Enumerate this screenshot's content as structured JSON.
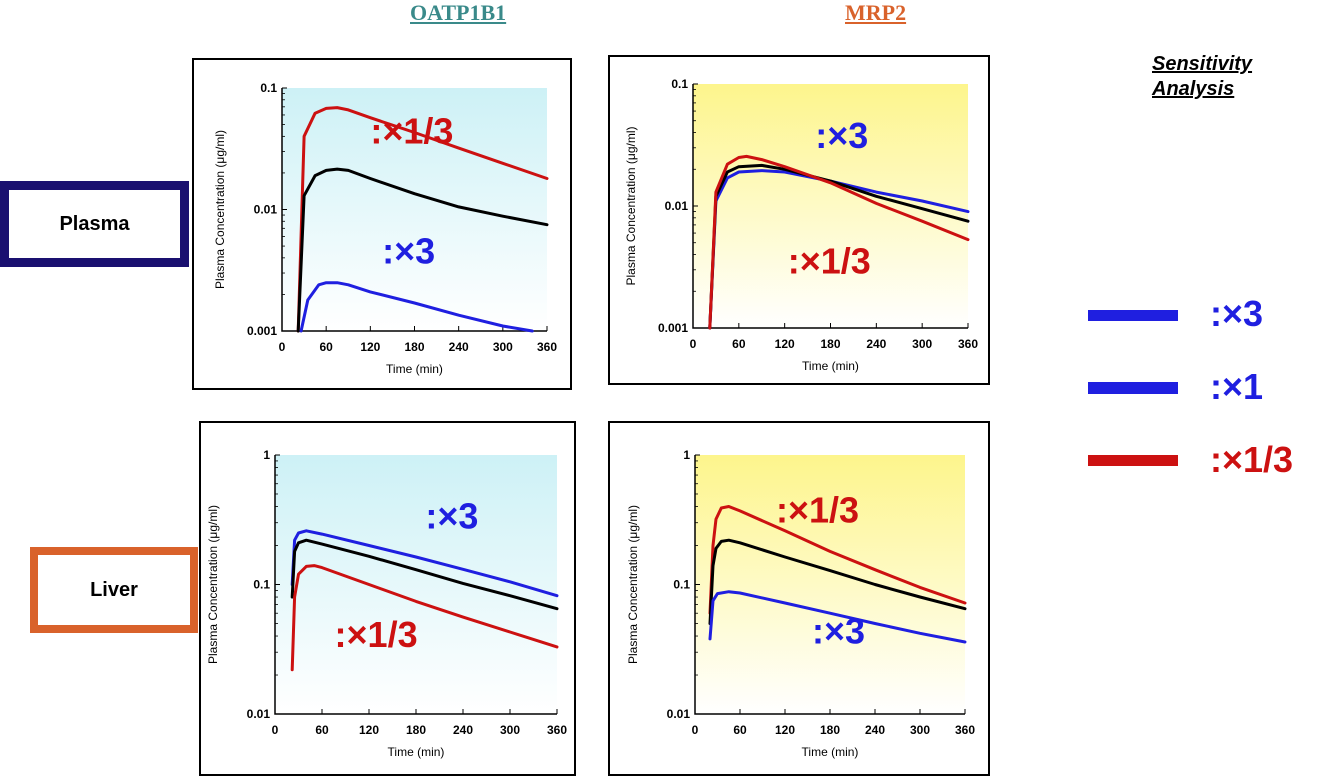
{
  "headers": {
    "oatp1b1": "OATP1B1",
    "mrp2": "MRP2"
  },
  "rows": {
    "plasma": "Plasma",
    "liver": "Liver"
  },
  "sensitivity": {
    "line1": "Sensitivity",
    "line2": "Analysis"
  },
  "legend": [
    {
      "label": ":×3",
      "color": "#1f1fe0"
    },
    {
      "label": ":×1",
      "color": "#1f1fe0"
    },
    {
      "label": ":×1/3",
      "color": "#cc1111"
    }
  ],
  "colors": {
    "blue": "#1f1fe0",
    "black": "#000000",
    "red": "#cc1111",
    "cyan_bg": "#cdf1f6",
    "yellow_bg": "#fdf58c"
  },
  "chart_data": [
    {
      "id": "p1",
      "type": "line",
      "log_y": true,
      "ylim": [
        0.001,
        0.1
      ],
      "yticks": [
        "0.001",
        "0.01",
        "0.1"
      ],
      "xlim": [
        0,
        360
      ],
      "xticks": [
        "0",
        "60",
        "120",
        "180",
        "240",
        "300",
        "360"
      ],
      "xlabel": "Time (min)",
      "ylabel": "Plasma Concentration (μg/ml)",
      "background": "cyan",
      "series": [
        {
          "name": "×1/3",
          "color": "red",
          "x": [
            22,
            30,
            45,
            60,
            75,
            90,
            120,
            180,
            240,
            300,
            360
          ],
          "y": [
            0.001,
            0.04,
            0.062,
            0.068,
            0.069,
            0.066,
            0.057,
            0.043,
            0.032,
            0.024,
            0.018
          ]
        },
        {
          "name": "×1",
          "color": "black",
          "x": [
            22,
            30,
            45,
            60,
            75,
            90,
            120,
            180,
            240,
            300,
            360
          ],
          "y": [
            0.001,
            0.013,
            0.019,
            0.021,
            0.0215,
            0.021,
            0.018,
            0.0135,
            0.0105,
            0.0088,
            0.0075
          ]
        },
        {
          "name": "×3",
          "color": "blue",
          "x": [
            26,
            35,
            50,
            60,
            75,
            90,
            120,
            180,
            240,
            300,
            340
          ],
          "y": [
            0.001,
            0.0018,
            0.0024,
            0.0025,
            0.0025,
            0.0024,
            0.0021,
            0.0017,
            0.00135,
            0.0011,
            0.001
          ]
        }
      ],
      "annotations": [
        {
          "text": ":×1/3",
          "color": "red",
          "x": 120,
          "y": 0.035
        },
        {
          "text": ":×3",
          "color": "blue",
          "x": 136,
          "y": 0.0036
        }
      ]
    },
    {
      "id": "p2",
      "type": "line",
      "log_y": true,
      "ylim": [
        0.001,
        0.1
      ],
      "yticks": [
        "0.001",
        "0.01",
        "0.1"
      ],
      "xlim": [
        0,
        360
      ],
      "xticks": [
        "0",
        "60",
        "120",
        "180",
        "240",
        "300",
        "360"
      ],
      "xlabel": "Time (min)",
      "ylabel": "Plasma Concentration (μg/ml)",
      "background": "yellow",
      "series": [
        {
          "name": "×3",
          "color": "blue",
          "x": [
            22,
            30,
            45,
            60,
            90,
            120,
            180,
            240,
            300,
            360
          ],
          "y": [
            0.001,
            0.011,
            0.017,
            0.019,
            0.0195,
            0.019,
            0.016,
            0.013,
            0.011,
            0.009
          ]
        },
        {
          "name": "×1",
          "color": "black",
          "x": [
            22,
            30,
            45,
            60,
            90,
            120,
            180,
            240,
            300,
            360
          ],
          "y": [
            0.001,
            0.012,
            0.019,
            0.021,
            0.0215,
            0.02,
            0.016,
            0.012,
            0.0095,
            0.0075
          ]
        },
        {
          "name": "×1/3",
          "color": "red",
          "x": [
            22,
            30,
            45,
            60,
            70,
            90,
            120,
            180,
            240,
            300,
            360
          ],
          "y": [
            0.001,
            0.013,
            0.022,
            0.025,
            0.0255,
            0.024,
            0.021,
            0.0155,
            0.0105,
            0.0075,
            0.0053
          ]
        }
      ],
      "annotations": [
        {
          "text": ":×3",
          "color": "blue",
          "x": 160,
          "y": 0.03
        },
        {
          "text": ":×1/3",
          "color": "red",
          "x": 124,
          "y": 0.0028
        }
      ]
    },
    {
      "id": "p3",
      "type": "line",
      "log_y": true,
      "ylim": [
        0.01,
        1
      ],
      "yticks": [
        "0.01",
        "0.1",
        "1"
      ],
      "xlim": [
        0,
        360
      ],
      "xticks": [
        "0",
        "60",
        "120",
        "180",
        "240",
        "300",
        "360"
      ],
      "xlabel": "Time (min)",
      "ylabel": "Plasma Concentration (μg/ml)",
      "background": "cyan",
      "series": [
        {
          "name": "×3",
          "color": "blue",
          "x": [
            22,
            25,
            30,
            40,
            60,
            120,
            180,
            240,
            300,
            360
          ],
          "y": [
            0.1,
            0.22,
            0.25,
            0.26,
            0.245,
            0.2,
            0.163,
            0.131,
            0.105,
            0.082
          ]
        },
        {
          "name": "×1",
          "color": "black",
          "x": [
            22,
            25,
            30,
            40,
            60,
            120,
            180,
            240,
            300,
            360
          ],
          "y": [
            0.08,
            0.18,
            0.21,
            0.22,
            0.205,
            0.165,
            0.13,
            0.102,
            0.082,
            0.065
          ]
        },
        {
          "name": "×1/3",
          "color": "red",
          "x": [
            22,
            25,
            30,
            40,
            50,
            60,
            120,
            180,
            240,
            300,
            360
          ],
          "y": [
            0.022,
            0.08,
            0.12,
            0.138,
            0.14,
            0.135,
            0.1,
            0.074,
            0.056,
            0.043,
            0.033
          ]
        }
      ],
      "annotations": [
        {
          "text": ":×3",
          "color": "blue",
          "x": 192,
          "y": 0.27
        },
        {
          "text": ":×1/3",
          "color": "red",
          "x": 76,
          "y": 0.033
        }
      ]
    },
    {
      "id": "p4",
      "type": "line",
      "log_y": true,
      "ylim": [
        0.01,
        1
      ],
      "yticks": [
        "0.01",
        "0.1",
        "1"
      ],
      "xlim": [
        0,
        360
      ],
      "xticks": [
        "0",
        "60",
        "120",
        "180",
        "240",
        "300",
        "360"
      ],
      "xlabel": "Time (min)",
      "ylabel": "Plasma Concentration (μg/ml)",
      "background": "yellow",
      "series": [
        {
          "name": "×1/3",
          "color": "red",
          "x": [
            20,
            24,
            28,
            35,
            45,
            60,
            120,
            180,
            240,
            300,
            360
          ],
          "y": [
            0.06,
            0.2,
            0.32,
            0.39,
            0.4,
            0.37,
            0.26,
            0.18,
            0.13,
            0.095,
            0.072
          ]
        },
        {
          "name": "×1",
          "color": "black",
          "x": [
            20,
            24,
            28,
            35,
            45,
            60,
            120,
            180,
            240,
            300,
            360
          ],
          "y": [
            0.05,
            0.14,
            0.19,
            0.215,
            0.22,
            0.21,
            0.163,
            0.128,
            0.1,
            0.08,
            0.065
          ]
        },
        {
          "name": "×3",
          "color": "blue",
          "x": [
            20,
            24,
            30,
            45,
            60,
            120,
            180,
            240,
            300,
            360
          ],
          "y": [
            0.038,
            0.075,
            0.085,
            0.088,
            0.086,
            0.072,
            0.06,
            0.05,
            0.042,
            0.036
          ]
        }
      ],
      "annotations": [
        {
          "text": ":×1/3",
          "color": "red",
          "x": 108,
          "y": 0.3
        },
        {
          "text": ":×3",
          "color": "blue",
          "x": 156,
          "y": 0.035
        }
      ]
    }
  ]
}
